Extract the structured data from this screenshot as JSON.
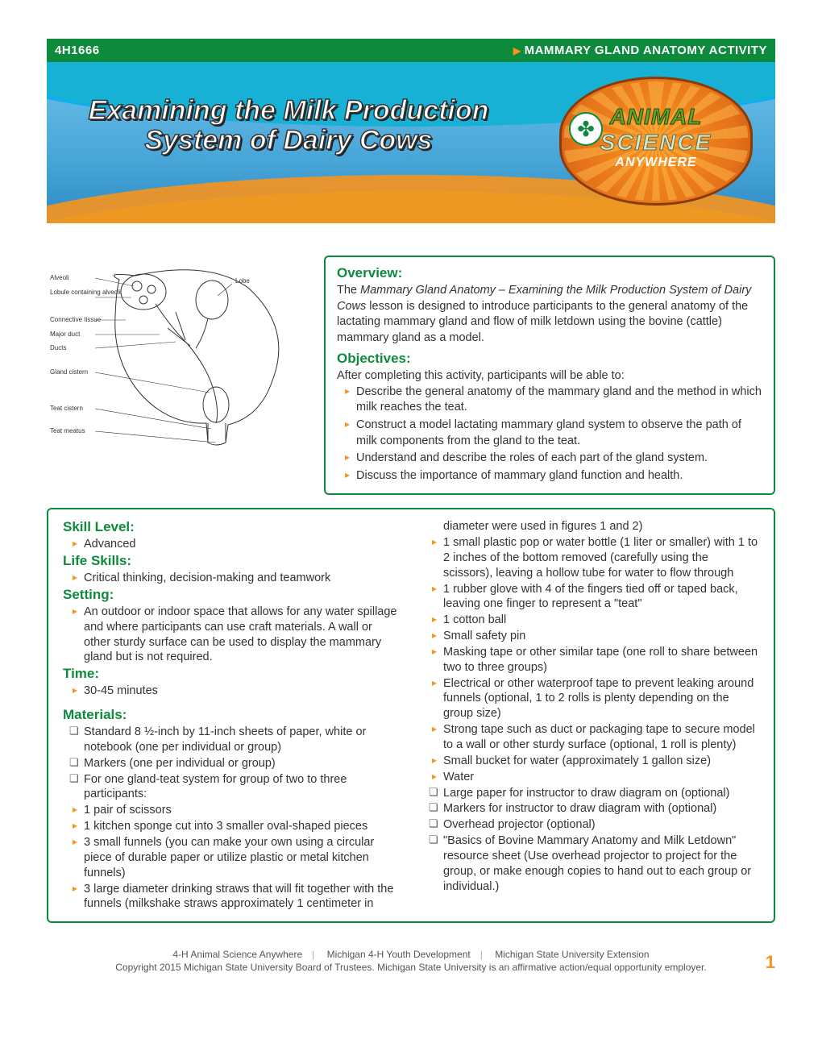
{
  "header": {
    "code": "4H1666",
    "activity_label": "MAMMARY GLAND ANATOMY ACTIVITY"
  },
  "hero": {
    "title_line1": "Examining the Milk Production",
    "title_line2": "System of Dairy Cows",
    "badge_line1": "ANIMAL",
    "badge_line2": "SCIENCE",
    "badge_line3": "ANYWHERE",
    "clover": "✤"
  },
  "diagram": {
    "labels": {
      "alveoli": "Alveoli",
      "lobule": "Lobule containing alveoli",
      "connective": "Connective tissue",
      "major_duct": "Major duct",
      "ducts": "Ducts",
      "gland_cistern": "Gland cistern",
      "teat_cistern": "Teat cistern",
      "teat_meatus": "Teat meatus",
      "lobe": "Lobe"
    }
  },
  "overview": {
    "heading": "Overview:",
    "text_prefix": "The ",
    "text_italic": "Mammary Gland Anatomy – Examining the Milk Production System of Dairy Cows",
    "text_suffix": " lesson is designed to introduce participants to the general anatomy of the lactating mammary gland and flow of milk letdown using the bovine (cattle) mammary gland as a model."
  },
  "objectives": {
    "heading": "Objectives:",
    "intro": "After completing this activity, participants will be able to:",
    "items": [
      "Describe the general anatomy of the mammary gland and the method in which milk reaches the teat.",
      "Construct a model lactating mammary gland system to observe the path of milk components from the gland to the teat.",
      "Understand and describe the roles of each part of the gland system.",
      "Discuss the importance of mammary gland function and health."
    ]
  },
  "details": {
    "skill": {
      "heading": "Skill Level:",
      "value": "Advanced"
    },
    "life": {
      "heading": "Life Skills:",
      "value": "Critical thinking, decision-making and teamwork"
    },
    "setting": {
      "heading": "Setting:",
      "value": "An outdoor or indoor space that allows for any water spillage and where participants can use craft materials. A wall or other sturdy surface can be used to display the mammary gland but is not required."
    },
    "time": {
      "heading": "Time:",
      "value": "30-45 minutes"
    },
    "materials": {
      "heading": "Materials:",
      "items": [
        {
          "t": "box",
          "text": "Standard 8 ½-inch by 11-inch sheets of paper, white or notebook (one per individual or group)"
        },
        {
          "t": "box",
          "text": "Markers (one per individual or group)"
        },
        {
          "t": "box",
          "text": "For one gland-teat system for group of two to three participants:"
        },
        {
          "t": "caret",
          "sub": true,
          "text": "1 pair of scissors"
        },
        {
          "t": "caret",
          "sub": true,
          "text": "1 kitchen sponge cut into 3 smaller oval-shaped pieces"
        },
        {
          "t": "caret",
          "sub": true,
          "text": "3 small funnels (you can make your own using a circular piece of durable paper or utilize plastic or metal kitchen funnels)"
        },
        {
          "t": "caret",
          "sub": true,
          "text": "3 large diameter drinking straws that will fit together with the funnels (milkshake straws approximately 1 centimeter in diameter were used in figures 1 and 2)"
        },
        {
          "t": "caret",
          "sub": true,
          "text": "1 small plastic pop or water bottle (1 liter or smaller) with 1 to 2 inches of the bottom removed (carefully using the scissors), leaving a hollow tube for water to flow through"
        },
        {
          "t": "caret",
          "sub": true,
          "text": "1 rubber glove with 4 of the fingers tied off or taped back, leaving one finger to represent a \"teat\""
        },
        {
          "t": "caret",
          "sub": true,
          "text": "1 cotton ball"
        },
        {
          "t": "caret",
          "sub": true,
          "text": "Small safety pin"
        },
        {
          "t": "caret",
          "sub": true,
          "text": "Masking tape or other similar tape (one roll to share between two to three groups)"
        },
        {
          "t": "caret",
          "sub": true,
          "text": "Electrical or other waterproof tape to prevent leaking around funnels (optional, 1 to 2 rolls is plenty depending on the group size)"
        },
        {
          "t": "caret",
          "sub": true,
          "text": "Strong tape such as duct or packaging tape to secure model to a wall or other sturdy surface (optional, 1 roll is plenty)"
        },
        {
          "t": "caret",
          "sub": true,
          "text": "Small bucket for water (approximately 1 gallon size)"
        },
        {
          "t": "caret",
          "sub": true,
          "text": "Water"
        },
        {
          "t": "box",
          "text": "Large paper for instructor to draw diagram on (optional)"
        },
        {
          "t": "box",
          "text": "Markers for instructor to draw diagram with (optional)"
        },
        {
          "t": "box",
          "text": "Overhead projector (optional)"
        },
        {
          "t": "box",
          "text": "\"Basics of Bovine Mammary Anatomy and Milk Letdown\" resource sheet (Use overhead projector to project for the group, or make enough copies to hand out to each group or individual.)"
        }
      ]
    }
  },
  "footer": {
    "line1_a": "4-H Animal Science Anywhere",
    "line1_b": "Michigan 4-H Youth Development",
    "line1_c": "Michigan State University Extension",
    "line2": "Copyright 2015 Michigan State University Board of Trustees. Michigan State University is an affirmative action/equal opportunity employer.",
    "page": "1"
  },
  "colors": {
    "green": "#0e8a3c",
    "orange": "#f7941e",
    "blue": "#48a6d8"
  }
}
